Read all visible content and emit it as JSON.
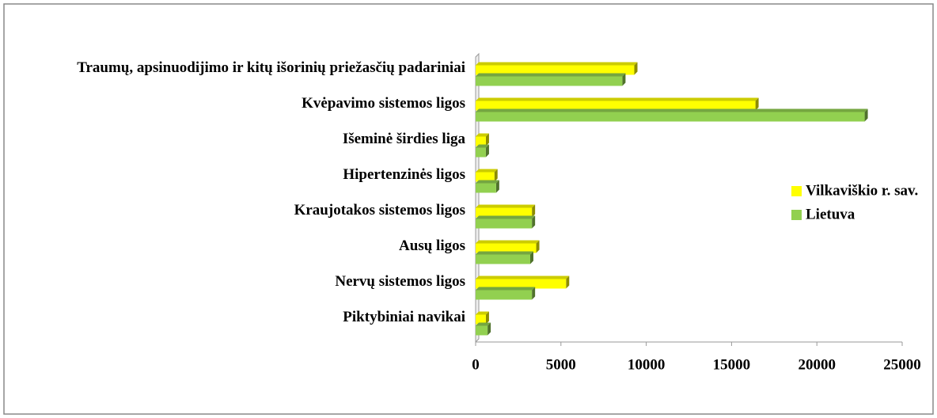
{
  "chart_data": {
    "type": "bar",
    "orientation": "horizontal",
    "categories": [
      "Piktybiniai navikai",
      "Nervų sistemos ligos",
      "Ausų ligos",
      "Kraujotakos sistemos ligos",
      "Hipertenzinės ligos",
      "Išeminė širdies liga",
      "Kvėpavimo sistemos ligos",
      "Traumų, apsinuodijimo ir kitų išorinių priežasčių padariniai"
    ],
    "series": [
      {
        "name": "Vilkaviškio r. sav.",
        "color": "#ffff00",
        "values": [
          600,
          5300,
          3550,
          3300,
          1100,
          600,
          16400,
          9300
        ]
      },
      {
        "name": "Lietuva",
        "color": "#92d050",
        "values": [
          700,
          3300,
          3200,
          3300,
          1200,
          600,
          22800,
          8600
        ]
      }
    ],
    "xlim": [
      0,
      25000
    ],
    "xticks": [
      0,
      5000,
      10000,
      15000,
      20000,
      25000
    ],
    "legend": "right"
  }
}
